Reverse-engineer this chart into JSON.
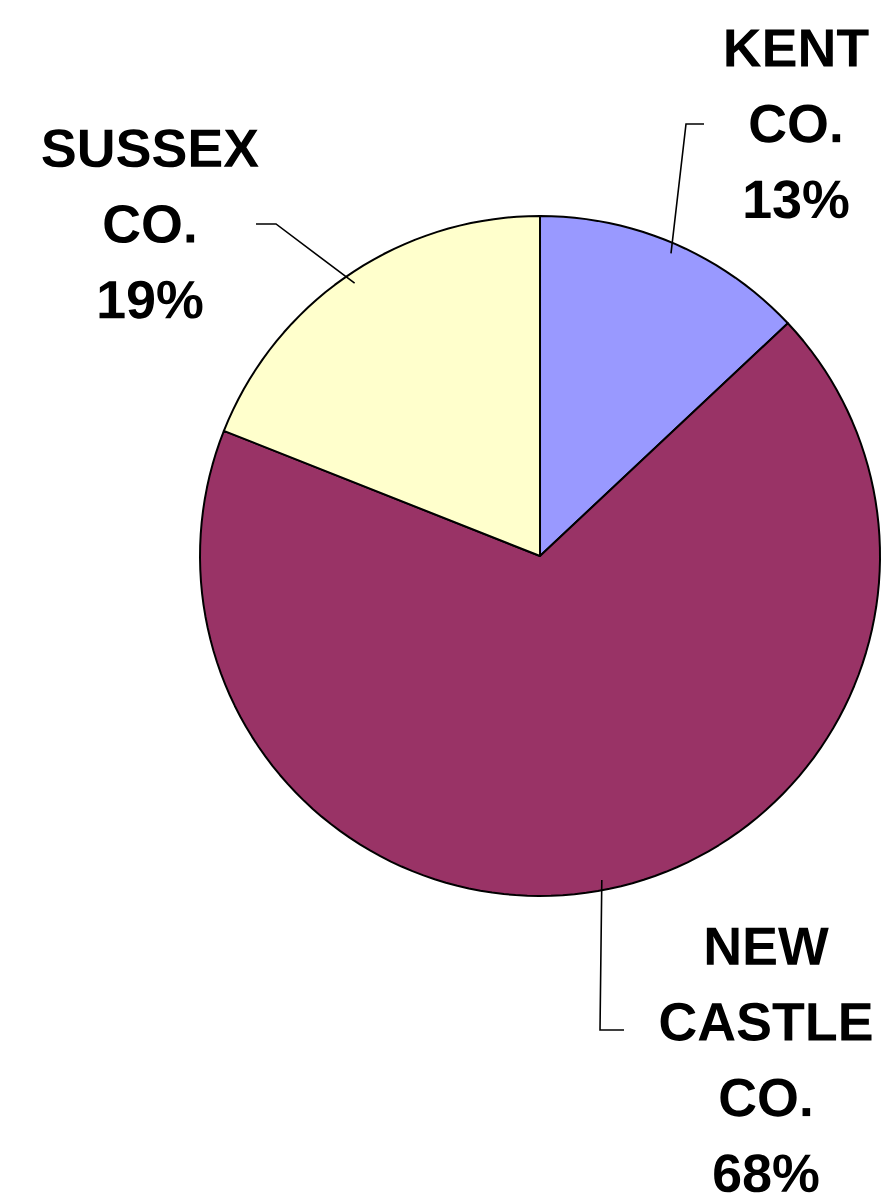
{
  "chart_data": {
    "type": "pie",
    "categories": [
      "KENT CO.",
      "NEW CASTLE CO.",
      "SUSSEX CO."
    ],
    "values": [
      13,
      68,
      19
    ],
    "value_labels": [
      "13%",
      "68%",
      "19%"
    ],
    "colors": [
      "#9999ff",
      "#993366",
      "#ffffcc"
    ]
  }
}
